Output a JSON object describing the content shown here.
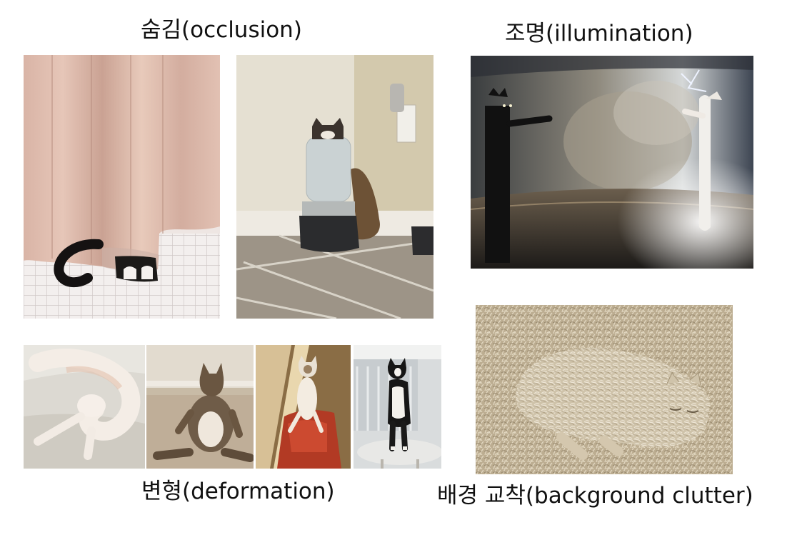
{
  "labels": {
    "occlusion": "숨김(occlusion)",
    "illumination": "조명(illumination)",
    "deformation": "변형(deformation)",
    "background_clutter": "배경 교착(background clutter)"
  },
  "colors": {
    "background": "#ffffff",
    "text": "#111111"
  }
}
